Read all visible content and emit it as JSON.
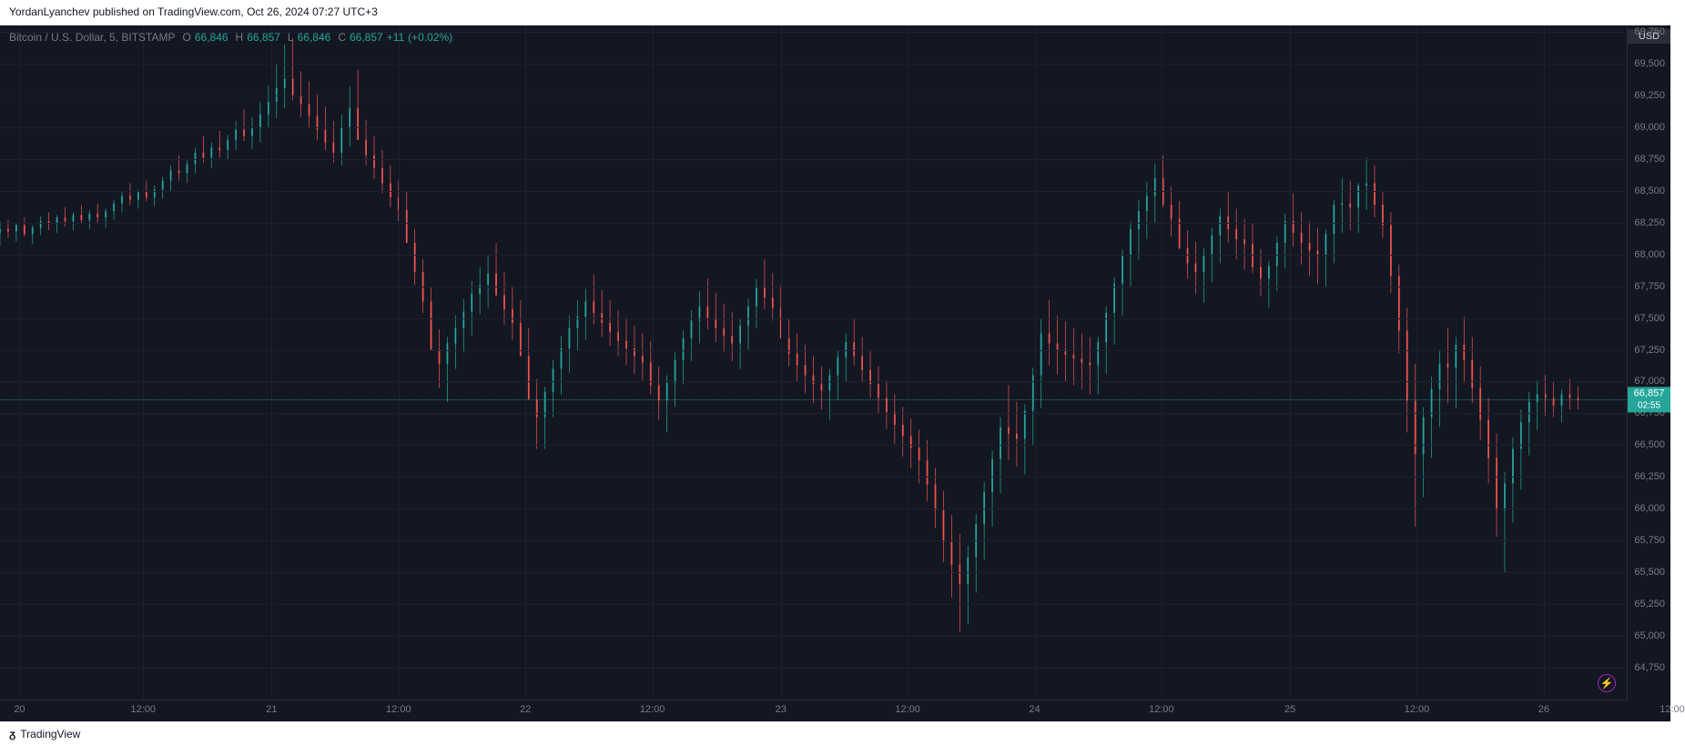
{
  "publish": {
    "author": "YordanLyanchev",
    "site": "TradingView.com",
    "date": "Oct 26, 2024 07:27 UTC+3",
    "text": "YordanLyanchev published on TradingView.com, Oct 26, 2024 07:27 UTC+3"
  },
  "legend": {
    "symbol": "Bitcoin / U.S. Dollar, 5, BITSTAMP",
    "o_label": "O",
    "o": "66,846",
    "h_label": "H",
    "h": "66,857",
    "l_label": "L",
    "l": "66,846",
    "c_label": "C",
    "c": "66,857",
    "change": "+11",
    "pct": "(+0.02%)"
  },
  "axes": {
    "currency": "USD",
    "y_min": 64500,
    "y_max": 69800,
    "y_ticks": [
      {
        "v": 69750,
        "label": "69,750"
      },
      {
        "v": 69500,
        "label": "69,500"
      },
      {
        "v": 69250,
        "label": "69,250"
      },
      {
        "v": 69000,
        "label": "69,000"
      },
      {
        "v": 68750,
        "label": "68,750"
      },
      {
        "v": 68500,
        "label": "68,500"
      },
      {
        "v": 68250,
        "label": "68,250"
      },
      {
        "v": 68000,
        "label": "68,000"
      },
      {
        "v": 67750,
        "label": "67,750"
      },
      {
        "v": 67500,
        "label": "67,500"
      },
      {
        "v": 67250,
        "label": "67,250"
      },
      {
        "v": 67000,
        "label": "67,000"
      },
      {
        "v": 66750,
        "label": "66,750"
      },
      {
        "v": 66500,
        "label": "66,500"
      },
      {
        "v": 66250,
        "label": "66,250"
      },
      {
        "v": 66000,
        "label": "66,000"
      },
      {
        "v": 65750,
        "label": "65,750"
      },
      {
        "v": 65500,
        "label": "65,500"
      },
      {
        "v": 65250,
        "label": "65,250"
      },
      {
        "v": 65000,
        "label": "65,000"
      },
      {
        "v": 64750,
        "label": "64,750"
      }
    ],
    "x_ticks": [
      {
        "t": 0.012,
        "label": "20"
      },
      {
        "t": 0.088,
        "label": "12:00"
      },
      {
        "t": 0.167,
        "label": "21"
      },
      {
        "t": 0.245,
        "label": "12:00"
      },
      {
        "t": 0.323,
        "label": "22"
      },
      {
        "t": 0.401,
        "label": "12:00"
      },
      {
        "t": 0.48,
        "label": "23"
      },
      {
        "t": 0.558,
        "label": "12:00"
      },
      {
        "t": 0.636,
        "label": "24"
      },
      {
        "t": 0.714,
        "label": "12:00"
      },
      {
        "t": 0.793,
        "label": "25"
      },
      {
        "t": 0.871,
        "label": "12:00"
      },
      {
        "t": 0.949,
        "label": "26"
      },
      {
        "t": 1.028,
        "label": "12:00"
      }
    ],
    "last_price": 66857,
    "countdown": "02:55"
  },
  "style": {
    "bg": "#131722",
    "grid": "#1c2030",
    "up": "#26a69a",
    "down": "#ef5350",
    "text_muted": "#787b86",
    "price_line": "#26a69a"
  },
  "footer": {
    "brand": "TradingView"
  },
  "candles": [
    [
      0.0,
      68170,
      68260,
      68070,
      68200
    ],
    [
      0.005,
      68200,
      68270,
      68130,
      68180
    ],
    [
      0.01,
      68180,
      68250,
      68100,
      68230
    ],
    [
      0.015,
      68230,
      68290,
      68140,
      68160
    ],
    [
      0.02,
      68160,
      68230,
      68080,
      68210
    ],
    [
      0.025,
      68210,
      68300,
      68150,
      68260
    ],
    [
      0.03,
      68260,
      68330,
      68190,
      68240
    ],
    [
      0.035,
      68240,
      68310,
      68170,
      68290
    ],
    [
      0.04,
      68290,
      68370,
      68220,
      68260
    ],
    [
      0.045,
      68260,
      68330,
      68190,
      68310
    ],
    [
      0.05,
      68310,
      68390,
      68240,
      68270
    ],
    [
      0.055,
      68270,
      68350,
      68200,
      68320
    ],
    [
      0.06,
      68320,
      68400,
      68250,
      68290
    ],
    [
      0.065,
      68290,
      68360,
      68210,
      68340
    ],
    [
      0.07,
      68340,
      68430,
      68270,
      68400
    ],
    [
      0.075,
      68400,
      68490,
      68330,
      68460
    ],
    [
      0.08,
      68460,
      68560,
      68390,
      68430
    ],
    [
      0.085,
      68430,
      68510,
      68360,
      68490
    ],
    [
      0.09,
      68490,
      68580,
      68420,
      68450
    ],
    [
      0.095,
      68450,
      68540,
      68380,
      68510
    ],
    [
      0.1,
      68510,
      68610,
      68440,
      68580
    ],
    [
      0.105,
      68580,
      68700,
      68500,
      68660
    ],
    [
      0.11,
      68660,
      68780,
      68580,
      68640
    ],
    [
      0.115,
      68640,
      68750,
      68560,
      68710
    ],
    [
      0.12,
      68710,
      68840,
      68640,
      68800
    ],
    [
      0.125,
      68800,
      68930,
      68720,
      68760
    ],
    [
      0.13,
      68760,
      68880,
      68680,
      68840
    ],
    [
      0.135,
      68840,
      68970,
      68760,
      68820
    ],
    [
      0.14,
      68820,
      68940,
      68740,
      68900
    ],
    [
      0.145,
      68900,
      69050,
      68820,
      68980
    ],
    [
      0.15,
      68980,
      69140,
      68890,
      68930
    ],
    [
      0.155,
      68930,
      69080,
      68830,
      68990
    ],
    [
      0.16,
      68990,
      69200,
      68880,
      69100
    ],
    [
      0.165,
      69100,
      69330,
      68990,
      69200
    ],
    [
      0.17,
      69200,
      69500,
      69070,
      69310
    ],
    [
      0.175,
      69310,
      69650,
      69150,
      69380
    ],
    [
      0.18,
      69380,
      69700,
      69210,
      69250
    ],
    [
      0.185,
      69250,
      69440,
      69080,
      69180
    ],
    [
      0.19,
      69180,
      69360,
      69000,
      69090
    ],
    [
      0.195,
      69090,
      69260,
      68900,
      68980
    ],
    [
      0.2,
      68980,
      69160,
      68820,
      68880
    ],
    [
      0.205,
      68880,
      69050,
      68720,
      68800
    ],
    [
      0.21,
      68800,
      69100,
      68700,
      69000
    ],
    [
      0.215,
      69000,
      69320,
      68850,
      69150
    ],
    [
      0.22,
      69150,
      69450,
      69000,
      68900
    ],
    [
      0.225,
      68900,
      69060,
      68700,
      68780
    ],
    [
      0.23,
      68780,
      68930,
      68590,
      68680
    ],
    [
      0.235,
      68680,
      68820,
      68480,
      68560
    ],
    [
      0.24,
      68560,
      68700,
      68370,
      68450
    ],
    [
      0.245,
      68450,
      68580,
      68260,
      68350
    ],
    [
      0.25,
      68350,
      68490,
      68160,
      68090
    ],
    [
      0.255,
      68090,
      68200,
      67760,
      67860
    ],
    [
      0.26,
      67860,
      67960,
      67540,
      67630
    ],
    [
      0.265,
      67630,
      67740,
      67300,
      67250
    ],
    [
      0.27,
      67250,
      67410,
      66950,
      67140
    ],
    [
      0.275,
      67140,
      67350,
      66840,
      67300
    ],
    [
      0.28,
      67300,
      67520,
      67100,
      67420
    ],
    [
      0.285,
      67420,
      67650,
      67230,
      67550
    ],
    [
      0.29,
      67550,
      67790,
      67360,
      67690
    ],
    [
      0.295,
      67690,
      67900,
      67530,
      67760
    ],
    [
      0.3,
      67760,
      67990,
      67580,
      67850
    ],
    [
      0.305,
      67850,
      68090,
      67670,
      67680
    ],
    [
      0.31,
      67680,
      67860,
      67450,
      67570
    ],
    [
      0.315,
      67570,
      67750,
      67330,
      67460
    ],
    [
      0.32,
      67460,
      67640,
      67220,
      67200
    ],
    [
      0.325,
      67200,
      67420,
      66930,
      66860
    ],
    [
      0.33,
      66860,
      67020,
      66470,
      66720
    ],
    [
      0.335,
      66720,
      66960,
      66470,
      66920
    ],
    [
      0.34,
      66920,
      67170,
      66720,
      67100
    ],
    [
      0.345,
      67100,
      67360,
      66900,
      67260
    ],
    [
      0.35,
      67260,
      67520,
      67070,
      67420
    ],
    [
      0.355,
      67420,
      67640,
      67240,
      67510
    ],
    [
      0.36,
      67510,
      67730,
      67330,
      67630
    ],
    [
      0.365,
      67630,
      67840,
      67450,
      67540
    ],
    [
      0.37,
      67540,
      67720,
      67350,
      67460
    ],
    [
      0.375,
      67460,
      67640,
      67280,
      67390
    ],
    [
      0.38,
      67390,
      67560,
      67200,
      67320
    ],
    [
      0.385,
      67320,
      67500,
      67130,
      67260
    ],
    [
      0.39,
      67260,
      67440,
      67060,
      67200
    ],
    [
      0.395,
      67200,
      67380,
      67010,
      67150
    ],
    [
      0.4,
      67150,
      67320,
      66900,
      66970
    ],
    [
      0.405,
      66970,
      67120,
      66700,
      66850
    ],
    [
      0.41,
      66850,
      67050,
      66600,
      66990
    ],
    [
      0.415,
      66990,
      67230,
      66800,
      67170
    ],
    [
      0.42,
      67170,
      67400,
      66980,
      67340
    ],
    [
      0.425,
      67340,
      67560,
      67160,
      67480
    ],
    [
      0.43,
      67480,
      67710,
      67300,
      67590
    ],
    [
      0.435,
      67590,
      67810,
      67410,
      67500
    ],
    [
      0.44,
      67500,
      67700,
      67310,
      67420
    ],
    [
      0.445,
      67420,
      67610,
      67230,
      67360
    ],
    [
      0.45,
      67360,
      67550,
      67160,
      67300
    ],
    [
      0.455,
      67300,
      67490,
      67100,
      67440
    ],
    [
      0.46,
      67440,
      67650,
      67250,
      67590
    ],
    [
      0.465,
      67590,
      67810,
      67420,
      67750
    ],
    [
      0.47,
      67750,
      67960,
      67570,
      67660
    ],
    [
      0.475,
      67660,
      67850,
      67480,
      67580
    ],
    [
      0.48,
      67580,
      67760,
      67400,
      67340
    ],
    [
      0.485,
      67340,
      67490,
      67120,
      67220
    ],
    [
      0.49,
      67220,
      67380,
      67000,
      67130
    ],
    [
      0.495,
      67130,
      67290,
      66910,
      67050
    ],
    [
      0.5,
      67050,
      67200,
      66830,
      66980
    ],
    [
      0.505,
      66980,
      67120,
      66780,
      66930
    ],
    [
      0.51,
      66930,
      67100,
      66700,
      67050
    ],
    [
      0.515,
      67050,
      67240,
      66850,
      67190
    ],
    [
      0.52,
      67190,
      67380,
      67000,
      67310
    ],
    [
      0.525,
      67310,
      67500,
      67130,
      67200
    ],
    [
      0.53,
      67200,
      67350,
      66990,
      67090
    ],
    [
      0.535,
      67090,
      67250,
      66870,
      66980
    ],
    [
      0.54,
      66980,
      67120,
      66750,
      66870
    ],
    [
      0.545,
      66870,
      67010,
      66630,
      66760
    ],
    [
      0.55,
      66760,
      66900,
      66510,
      66660
    ],
    [
      0.555,
      66660,
      66800,
      66410,
      66570
    ],
    [
      0.56,
      66570,
      66710,
      66320,
      66480
    ],
    [
      0.565,
      66480,
      66620,
      66200,
      66380
    ],
    [
      0.57,
      66380,
      66540,
      66060,
      66190
    ],
    [
      0.575,
      66190,
      66320,
      65850,
      65990
    ],
    [
      0.58,
      65990,
      66140,
      65580,
      65740
    ],
    [
      0.585,
      65740,
      65950,
      65300,
      65560
    ],
    [
      0.59,
      65560,
      65800,
      65030,
      65410
    ],
    [
      0.595,
      65410,
      65710,
      65090,
      65620
    ],
    [
      0.6,
      65620,
      65960,
      65340,
      65880
    ],
    [
      0.605,
      65880,
      66210,
      65600,
      66130
    ],
    [
      0.61,
      66130,
      66460,
      65860,
      66390
    ],
    [
      0.615,
      66390,
      66720,
      66120,
      66640
    ],
    [
      0.62,
      66640,
      66970,
      66380,
      66590
    ],
    [
      0.625,
      66590,
      66840,
      66330,
      66550
    ],
    [
      0.63,
      66550,
      66820,
      66270,
      66770
    ],
    [
      0.635,
      66770,
      67110,
      66500,
      67050
    ],
    [
      0.64,
      67050,
      67490,
      66790,
      67380
    ],
    [
      0.645,
      67380,
      67640,
      67130,
      67300
    ],
    [
      0.65,
      67300,
      67520,
      67060,
      67250
    ],
    [
      0.655,
      67250,
      67470,
      67000,
      67210
    ],
    [
      0.66,
      67210,
      67420,
      66970,
      67180
    ],
    [
      0.665,
      67180,
      67380,
      66940,
      67150
    ],
    [
      0.67,
      67150,
      67350,
      66900,
      67130
    ],
    [
      0.675,
      67130,
      67350,
      66900,
      67310
    ],
    [
      0.68,
      67310,
      67590,
      67060,
      67540
    ],
    [
      0.685,
      67540,
      67820,
      67290,
      67770
    ],
    [
      0.69,
      67770,
      68040,
      67520,
      67990
    ],
    [
      0.695,
      67990,
      68260,
      67740,
      68200
    ],
    [
      0.7,
      68200,
      68430,
      67960,
      68340
    ],
    [
      0.705,
      68340,
      68570,
      68120,
      68460
    ],
    [
      0.71,
      68460,
      68710,
      68240,
      68600
    ],
    [
      0.715,
      68600,
      68780,
      68370,
      68390
    ],
    [
      0.72,
      68390,
      68530,
      68140,
      68280
    ],
    [
      0.725,
      68280,
      68420,
      68040,
      68050
    ],
    [
      0.73,
      68050,
      68190,
      67810,
      67930
    ],
    [
      0.735,
      67930,
      68100,
      67690,
      67860
    ],
    [
      0.74,
      67860,
      68050,
      67620,
      68000
    ],
    [
      0.745,
      68000,
      68210,
      67780,
      68150
    ],
    [
      0.75,
      68150,
      68360,
      67930,
      68300
    ],
    [
      0.755,
      68300,
      68500,
      68090,
      68200
    ],
    [
      0.76,
      68200,
      68360,
      67960,
      68120
    ],
    [
      0.765,
      68120,
      68280,
      67880,
      68080
    ],
    [
      0.77,
      68080,
      68240,
      67850,
      67900
    ],
    [
      0.775,
      67900,
      68040,
      67670,
      67810
    ],
    [
      0.78,
      67810,
      67950,
      67580,
      67910
    ],
    [
      0.785,
      67910,
      68140,
      67710,
      68090
    ],
    [
      0.79,
      68090,
      68320,
      67890,
      68260
    ],
    [
      0.795,
      68260,
      68480,
      68060,
      68170
    ],
    [
      0.8,
      68170,
      68330,
      67920,
      68090
    ],
    [
      0.805,
      68090,
      68260,
      67830,
      68030
    ],
    [
      0.81,
      68030,
      68210,
      67770,
      67990
    ],
    [
      0.815,
      67990,
      68200,
      67740,
      68160
    ],
    [
      0.82,
      68160,
      68430,
      67930,
      68390
    ],
    [
      0.825,
      68390,
      68600,
      68170,
      68400
    ],
    [
      0.83,
      68400,
      68580,
      68190,
      68370
    ],
    [
      0.835,
      68370,
      68560,
      68170,
      68540
    ],
    [
      0.84,
      68540,
      68760,
      68350,
      68560
    ],
    [
      0.845,
      68560,
      68700,
      68290,
      68390
    ],
    [
      0.85,
      68390,
      68500,
      68130,
      68230
    ],
    [
      0.855,
      68230,
      68330,
      67700,
      67830
    ],
    [
      0.86,
      67830,
      67920,
      67220,
      67400
    ],
    [
      0.865,
      67400,
      67580,
      66600,
      66850
    ],
    [
      0.87,
      66850,
      67140,
      65860,
      66430
    ],
    [
      0.875,
      66430,
      66800,
      66090,
      66720
    ],
    [
      0.88,
      66720,
      67040,
      66400,
      66940
    ],
    [
      0.885,
      66940,
      67250,
      66640,
      67140
    ],
    [
      0.89,
      67140,
      67420,
      66830,
      67110
    ],
    [
      0.895,
      67110,
      67350,
      66790,
      67290
    ],
    [
      0.9,
      67290,
      67510,
      66990,
      67170
    ],
    [
      0.905,
      67170,
      67350,
      66830,
      66950
    ],
    [
      0.91,
      66950,
      67120,
      66540,
      66700
    ],
    [
      0.915,
      66700,
      66870,
      66200,
      66400
    ],
    [
      0.92,
      66400,
      66590,
      65780,
      65990
    ],
    [
      0.925,
      65990,
      66290,
      65500,
      66200
    ],
    [
      0.93,
      66200,
      66560,
      65890,
      66470
    ],
    [
      0.935,
      66470,
      66780,
      66150,
      66680
    ],
    [
      0.94,
      66680,
      66920,
      66420,
      66840
    ],
    [
      0.945,
      66840,
      67010,
      66620,
      66900
    ],
    [
      0.95,
      66900,
      67050,
      66730,
      66870
    ],
    [
      0.955,
      66870,
      67000,
      66720,
      66810
    ],
    [
      0.96,
      66810,
      66940,
      66680,
      66900
    ],
    [
      0.965,
      66900,
      67020,
      66780,
      66870
    ],
    [
      0.97,
      66870,
      66960,
      66780,
      66857
    ]
  ]
}
